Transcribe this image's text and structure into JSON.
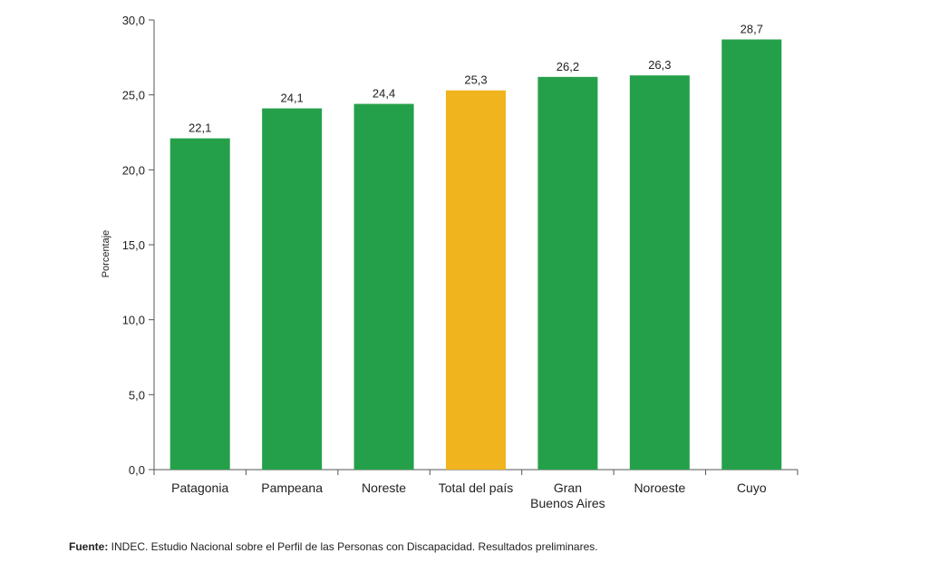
{
  "chart_data": {
    "type": "bar",
    "ylabel": "Porcentaje",
    "ylim": [
      0,
      30
    ],
    "yticks": [
      "0,0",
      "5,0",
      "10,0",
      "15,0",
      "20,0",
      "25,0",
      "30,0"
    ],
    "categories": [
      [
        "Patagonia"
      ],
      [
        "Pampeana"
      ],
      [
        "Noreste"
      ],
      [
        "Total del país"
      ],
      [
        "Gran",
        "Buenos Aires"
      ],
      [
        "Noroeste"
      ],
      [
        "Cuyo"
      ]
    ],
    "values": [
      22.1,
      24.1,
      24.4,
      25.3,
      26.2,
      26.3,
      28.7
    ],
    "value_labels": [
      "22,1",
      "24,1",
      "24,4",
      "25,3",
      "26,2",
      "26,3",
      "28,7"
    ],
    "highlight_index": 3,
    "colors": {
      "bar": "#25a04a",
      "highlight": "#f0b41e",
      "axis": "#555555"
    },
    "grid": false
  },
  "source": {
    "label": "Fuente:",
    "text": " INDEC. Estudio Nacional sobre el Perfil de las Personas con Discapacidad. Resultados preliminares."
  }
}
